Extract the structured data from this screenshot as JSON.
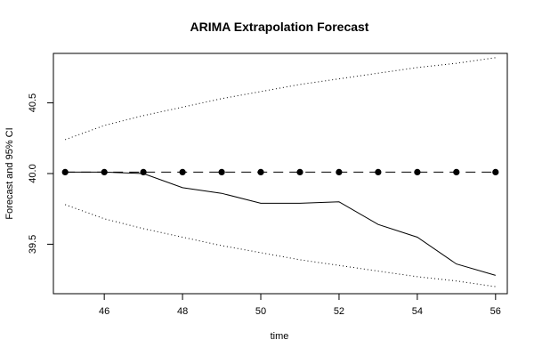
{
  "chart_data": {
    "type": "line",
    "title": "ARIMA Extrapolation Forecast",
    "xlabel": "time",
    "ylabel": "Forecast and 95% CI",
    "xlim": [
      44.7,
      56.3
    ],
    "ylim": [
      39.15,
      40.85
    ],
    "x_ticks": [
      46,
      48,
      50,
      52,
      54,
      56
    ],
    "y_ticks": [
      39.5,
      40.0,
      40.5
    ],
    "y_tick_labels": [
      "39.5",
      "40.0",
      "40.5"
    ],
    "grid": false,
    "series": [
      {
        "role": "actual",
        "style": "solid",
        "x": [
          45,
          46,
          47,
          48,
          49,
          50,
          51,
          52,
          53,
          54,
          55,
          56
        ],
        "values": [
          40.01,
          40.01,
          40.0,
          39.9,
          39.86,
          39.79,
          39.79,
          39.8,
          39.64,
          39.55,
          39.36,
          39.28
        ]
      },
      {
        "role": "forecast",
        "style": "dashed-with-points",
        "x": [
          45,
          46,
          47,
          48,
          49,
          50,
          51,
          52,
          53,
          54,
          55,
          56
        ],
        "values": [
          40.01,
          40.01,
          40.01,
          40.01,
          40.01,
          40.01,
          40.01,
          40.01,
          40.01,
          40.01,
          40.01,
          40.01
        ]
      },
      {
        "role": "upper-95",
        "style": "dotted",
        "x": [
          45,
          46,
          47,
          48,
          49,
          50,
          51,
          52,
          53,
          54,
          55,
          56
        ],
        "values": [
          40.24,
          40.34,
          40.41,
          40.47,
          40.53,
          40.58,
          40.63,
          40.67,
          40.71,
          40.75,
          40.78,
          40.82
        ]
      },
      {
        "role": "lower-95",
        "style": "dotted",
        "x": [
          45,
          46,
          47,
          48,
          49,
          50,
          51,
          52,
          53,
          54,
          55,
          56
        ],
        "values": [
          39.78,
          39.68,
          39.61,
          39.55,
          39.49,
          39.44,
          39.39,
          39.35,
          39.31,
          39.27,
          39.24,
          39.2
        ]
      }
    ]
  }
}
